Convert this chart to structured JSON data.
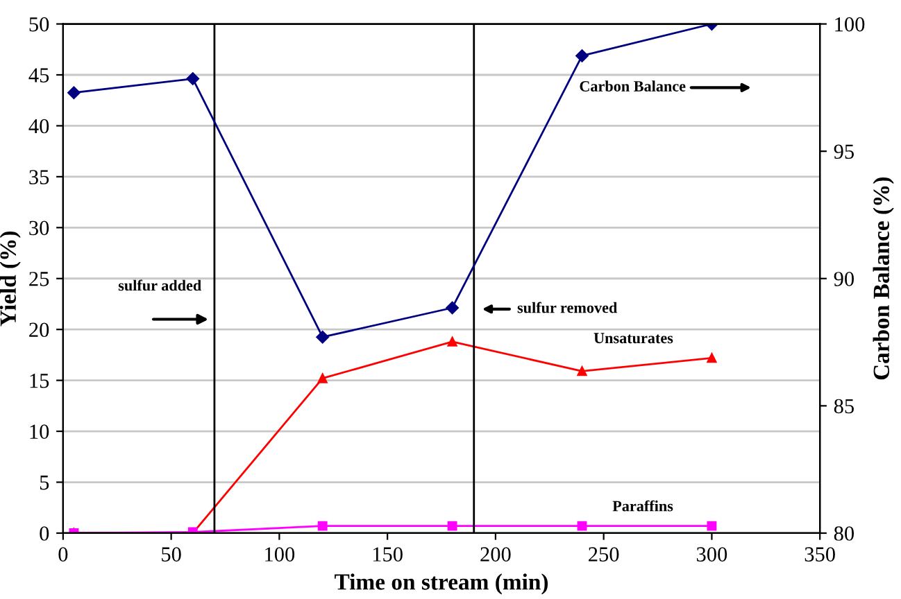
{
  "chart_data": {
    "type": "line",
    "xlabel": "Time on stream (min)",
    "ylabel": "Yield (%)",
    "y2label": "Carbon Balance (%)",
    "x": [
      5,
      60,
      120,
      180,
      240,
      300
    ],
    "series": [
      {
        "name": "Carbon Balance",
        "color": "#000080",
        "values": [
          97.3,
          97.85,
          87.7,
          88.85,
          98.75,
          100
        ],
        "axis": "y2",
        "marker": "diamond"
      },
      {
        "name": "Unsaturates",
        "color": "#ff0000",
        "values": [
          0,
          0,
          15.2,
          18.8,
          15.9,
          17.2
        ],
        "marker": "triangle"
      },
      {
        "name": "Paraffins",
        "color": "#ff00ff",
        "values": [
          0,
          0.1,
          0.7,
          0.7,
          0.7,
          0.7
        ],
        "marker": "square"
      }
    ],
    "xlim": [
      0,
      350
    ],
    "xticks": [
      0,
      50,
      100,
      150,
      200,
      250,
      300,
      350
    ],
    "ylim": [
      0,
      50
    ],
    "yticks": [
      0,
      5,
      10,
      15,
      20,
      25,
      30,
      35,
      40,
      45,
      50
    ],
    "y2lim": [
      80,
      100
    ],
    "y2ticks": [
      80,
      85,
      90,
      95,
      100
    ],
    "ref_lines": [
      {
        "axis": "x",
        "value": 70,
        "label": "sulfur added"
      },
      {
        "axis": "x",
        "value": 190,
        "label": "sulfur removed"
      }
    ],
    "grid": "y",
    "legend": false,
    "line_style": "solid"
  }
}
